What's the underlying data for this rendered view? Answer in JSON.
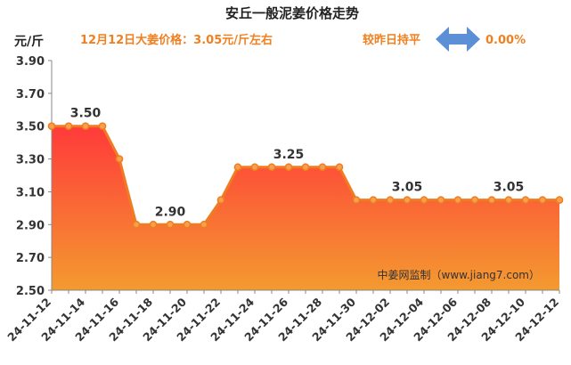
{
  "header": {
    "title": "安丘一般泥姜价格走势",
    "price_note": "12月12日大姜价格：3.05元/斤左右",
    "compare_label": "较昨日持平",
    "change_value": "0.00%"
  },
  "watermark": "中姜网监制（www.jiang7.com）",
  "colors": {
    "line": "#f07c22",
    "fill_top": "#ff3a3a",
    "fill_bottom": "#f49a30",
    "marker_fill": "#f5a04a",
    "arrow": "#5b8fd6",
    "accent_text": "#f08020"
  },
  "chart_data": {
    "type": "area",
    "title": "安丘一般泥姜价格走势",
    "ylabel": "元/斤",
    "xlabel": "",
    "ylim": [
      2.5,
      3.9
    ],
    "yticks": [
      "3.90",
      "3.70",
      "3.50",
      "3.30",
      "3.10",
      "2.90",
      "2.70",
      "2.50"
    ],
    "grid": false,
    "x": [
      "24-11-12",
      "24-11-13",
      "24-11-14",
      "24-11-15",
      "24-11-16",
      "24-11-17",
      "24-11-18",
      "24-11-19",
      "24-11-20",
      "24-11-21",
      "24-11-22",
      "24-11-23",
      "24-11-24",
      "24-11-25",
      "24-11-26",
      "24-11-27",
      "24-11-28",
      "24-11-29",
      "24-11-30",
      "24-12-01",
      "24-12-02",
      "24-12-03",
      "24-12-04",
      "24-12-05",
      "24-12-06",
      "24-12-07",
      "24-12-08",
      "24-12-09",
      "24-12-10",
      "24-12-11",
      "24-12-12"
    ],
    "xtick_labels": [
      "24-11-12",
      "24-11-14",
      "24-11-16",
      "24-11-18",
      "24-11-20",
      "24-11-22",
      "24-11-24",
      "24-11-26",
      "24-11-28",
      "24-11-30",
      "24-12-02",
      "24-12-04",
      "24-12-06",
      "24-12-08",
      "24-12-10",
      "24-12-12"
    ],
    "series": [
      {
        "values": [
          3.5,
          3.5,
          3.5,
          3.5,
          3.3,
          2.9,
          2.9,
          2.9,
          2.9,
          2.9,
          3.05,
          3.25,
          3.25,
          3.25,
          3.25,
          3.25,
          3.25,
          3.25,
          3.05,
          3.05,
          3.05,
          3.05,
          3.05,
          3.05,
          3.05,
          3.05,
          3.05,
          3.05,
          3.05,
          3.05,
          3.05
        ]
      }
    ],
    "data_labels": [
      {
        "x": "24-11-14",
        "text": "3.50"
      },
      {
        "x": "24-11-19",
        "text": "2.90"
      },
      {
        "x": "24-11-26",
        "text": "3.25"
      },
      {
        "x": "24-12-03",
        "text": "3.05"
      },
      {
        "x": "24-12-09",
        "text": "3.05"
      }
    ]
  }
}
